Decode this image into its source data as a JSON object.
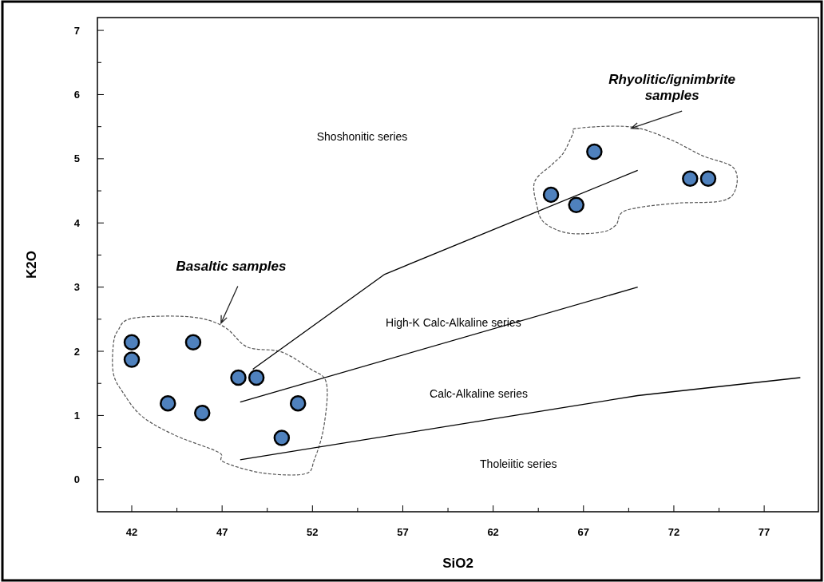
{
  "chart_data": {
    "type": "scatter",
    "xlabel": "SiO2",
    "ylabel": "K2O",
    "xlim": [
      40.1,
      80
    ],
    "ylim": [
      -0.5,
      7.2
    ],
    "xticks": [
      42,
      {
        "value": 44.5,
        "label": null
      },
      47,
      {
        "value": 49.5,
        "label": null
      },
      52,
      {
        "value": 54.5,
        "label": null
      },
      57,
      {
        "value": 59.5,
        "label": null
      },
      62,
      {
        "value": 64.5,
        "label": null
      },
      67,
      {
        "value": 69.5,
        "label": null
      },
      72,
      {
        "value": 74.5,
        "label": null
      },
      77
    ],
    "yticks": [
      0,
      {
        "value": 0.5,
        "label": null
      },
      1,
      {
        "value": 1.5,
        "label": null
      },
      2,
      {
        "value": 2.5,
        "label": null
      },
      3,
      {
        "value": 3.5,
        "label": null
      },
      4,
      {
        "value": 4.5,
        "label": null
      },
      5,
      {
        "value": 5.5,
        "label": null
      },
      6,
      {
        "value": 6.5,
        "label": null
      },
      7
    ],
    "grid": false,
    "series": [
      {
        "color": "#4f81bd",
        "marker": "circle",
        "x": [
          42,
          42,
          45.4,
          44,
          45.9,
          47.9,
          48.9,
          51.2,
          50.3,
          65.2,
          66.6,
          67.6,
          72.9,
          73.9
        ],
        "values": [
          2.14,
          1.87,
          2.14,
          1.19,
          1.04,
          1.59,
          1.59,
          1.19,
          0.65,
          4.44,
          4.28,
          5.11,
          4.69,
          4.69
        ]
      },
      {
        "type": "line",
        "color": "#000000",
        "line_style": "solid",
        "marker": "none",
        "x": [
          48.7,
          56,
          70
        ],
        "values": [
          1.72,
          3.2,
          4.82
        ]
      },
      {
        "type": "line",
        "color": "#000000",
        "line_style": "solid",
        "marker": "none",
        "x": [
          48,
          70
        ],
        "values": [
          1.21,
          3.0
        ]
      },
      {
        "type": "line",
        "color": "#000000",
        "line_style": "solid",
        "marker": "none",
        "x": [
          48,
          70,
          79
        ],
        "values": [
          0.31,
          1.31,
          1.59
        ]
      }
    ],
    "annotations": [
      "Shoshonitic series",
      "High-K Calc-Alkaline series",
      "Calc-Alkaline series",
      "Tholeiitic series",
      "Basaltic samples",
      "Rhyolitic/ignimbrite\nsamples"
    ]
  }
}
